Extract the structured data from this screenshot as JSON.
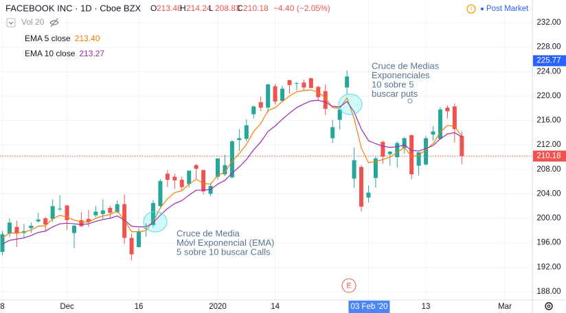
{
  "chart_data": {
    "type": "candlestick",
    "title": "FACEBOOK INC · 1D · Cboe BZX",
    "ohlc_labels": [
      "O",
      "H",
      "L",
      "C"
    ],
    "change": "−4.40 (−2.05%)",
    "session": "Post Market",
    "volume_label": "Vol 20",
    "up_color": "#26a69a",
    "down_color": "#ef5350",
    "categories": [
      "8",
      null,
      null,
      null,
      null,
      null,
      null,
      null,
      null,
      "Dec",
      null,
      null,
      null,
      null,
      null,
      null,
      null,
      null,
      null,
      "16",
      null,
      null,
      null,
      null,
      null,
      null,
      null,
      null,
      null,
      null,
      "2020",
      null,
      null,
      null,
      null,
      null,
      null,
      null,
      "14",
      null,
      null,
      null,
      null,
      null,
      null,
      null,
      null,
      null,
      null,
      null,
      null,
      "03 Feb '20",
      null,
      null,
      null,
      null,
      null,
      null,
      null,
      "13",
      null,
      null,
      null,
      null,
      null,
      null,
      null,
      null,
      null,
      null,
      "Mar"
    ],
    "open": [
      194.5,
      197.5,
      198.6,
      197.6,
      198.4,
      199.5,
      200.0,
      199.9,
      201.6,
      202.1,
      197.6,
      199.7,
      199.9,
      200.5,
      200.7,
      201.7,
      201.0,
      202.3,
      196.8,
      195.3,
      198.3,
      198.9,
      202.0,
      207.3,
      206.8,
      206.3,
      205.6,
      208.7,
      207.9,
      204.0,
      206.8,
      207.2,
      206.7,
      212.8,
      213.0,
      217.0,
      219.0,
      218.1,
      221.6,
      219.2,
      222.6,
      222.1,
      222.2,
      222.9,
      221.5,
      220.8,
      213.1,
      216.1,
      221.4,
      206.5,
      208.4,
      203.4,
      206.6,
      212.5,
      210.5,
      210.0,
      211.5,
      213.6,
      208.6,
      208.8,
      213.7,
      213.0,
      218.1,
      218.3,
      213.48,
      null,
      null,
      null,
      null,
      null,
      null
    ],
    "high": [
      197.9,
      200.0,
      199.6,
      199.1,
      199.3,
      200.9,
      200.2,
      203.1,
      203.8,
      202.2,
      198.9,
      201.0,
      201.4,
      202.0,
      203.1,
      202.1,
      202.9,
      203.9,
      197.5,
      198.4,
      199.2,
      203.0,
      206.4,
      207.9,
      207.3,
      206.8,
      207.8,
      208.9,
      207.9,
      205.6,
      209.8,
      210.4,
      212.8,
      214.6,
      216.2,
      218.4,
      219.9,
      222.0,
      222.0,
      221.7,
      222.6,
      222.3,
      222.7,
      223.0,
      221.7,
      221.9,
      216.1,
      218.4,
      224.2,
      211.6,
      208.7,
      205.4,
      210.1,
      212.7,
      211.0,
      212.6,
      213.3,
      213.7,
      210.8,
      213.5,
      215.1,
      218.2,
      218.5,
      218.8,
      214.24,
      null,
      null,
      null,
      null,
      null,
      null
    ],
    "low": [
      193.9,
      196.9,
      195.3,
      196.8,
      197.6,
      199.3,
      198.0,
      199.4,
      201.2,
      198.1,
      195.1,
      198.6,
      198.6,
      200.2,
      199.9,
      200.0,
      200.8,
      195.8,
      193.1,
      195.2,
      197.0,
      198.5,
      201.8,
      205.1,
      204.8,
      204.6,
      205.0,
      206.5,
      203.9,
      203.6,
      206.3,
      206.9,
      206.5,
      211.0,
      212.6,
      216.3,
      217.5,
      217.3,
      218.6,
      219.2,
      220.4,
      220.9,
      220.9,
      221.3,
      219.3,
      216.9,
      212.3,
      214.5,
      220.3,
      205.0,
      201.1,
      202.6,
      205.0,
      208.9,
      208.6,
      208.3,
      210.6,
      206.4,
      207.0,
      208.6,
      212.7,
      212.8,
      216.3,
      212.4,
      208.83,
      null,
      null,
      null,
      null,
      null,
      null
    ],
    "close": [
      197.4,
      199.3,
      197.5,
      197.9,
      198.8,
      199.8,
      199.0,
      202.0,
      201.6,
      199.7,
      198.8,
      198.7,
      199.4,
      201.1,
      201.3,
      200.9,
      202.3,
      196.8,
      194.1,
      197.9,
      198.4,
      202.5,
      206.1,
      206.3,
      206.2,
      205.1,
      207.8,
      208.1,
      204.4,
      205.3,
      209.8,
      208.7,
      212.6,
      213.1,
      215.2,
      218.3,
      218.1,
      221.9,
      219.1,
      221.2,
      221.8,
      222.1,
      221.4,
      221.3,
      219.8,
      217.9,
      214.9,
      217.8,
      223.2,
      209.5,
      201.9,
      204.2,
      209.8,
      210.1,
      210.9,
      212.3,
      213.1,
      207.2,
      210.8,
      213.1,
      214.2,
      217.8,
      217.5,
      214.6,
      210.18,
      null,
      null,
      null,
      null,
      null,
      null
    ],
    "series": [
      {
        "name": "EMA 5 close",
        "color": "#f57c00",
        "legend_value": "213.40",
        "values": [
          196.8,
          197.6,
          197.6,
          197.7,
          198.1,
          198.7,
          198.8,
          199.9,
          200.5,
          200.2,
          199.7,
          199.4,
          199.4,
          200.0,
          200.4,
          200.6,
          201.2,
          199.7,
          197.8,
          197.8,
          198.0,
          199.5,
          201.7,
          203.2,
          204.2,
          204.5,
          205.6,
          206.4,
          205.7,
          205.6,
          207.0,
          207.6,
          209.3,
          210.6,
          212.1,
          214.2,
          215.5,
          217.6,
          218.1,
          219.1,
          220.0,
          220.7,
          220.9,
          221.0,
          220.6,
          219.7,
          218.1,
          218.0,
          219.7,
          216.3,
          211.5,
          209.1,
          209.3,
          209.6,
          210.0,
          210.8,
          211.6,
          210.1,
          210.3,
          211.2,
          212.2,
          214.1,
          215.2,
          215.0,
          213.4,
          null,
          null,
          null,
          null,
          null,
          null
        ]
      },
      {
        "name": "EMA 10 close",
        "color": "#9c27b0",
        "legend_value": "213.27",
        "values": [
          195.8,
          196.4,
          196.6,
          196.8,
          197.2,
          197.7,
          197.9,
          198.6,
          199.1,
          199.2,
          199.1,
          199.0,
          199.1,
          199.5,
          199.8,
          200.0,
          200.4,
          199.7,
          198.7,
          198.6,
          198.6,
          199.3,
          200.5,
          201.6,
          202.4,
          202.9,
          203.8,
          204.6,
          204.6,
          204.7,
          205.6,
          206.2,
          207.4,
          208.4,
          209.6,
          211.2,
          212.5,
          214.2,
          215.1,
          216.2,
          217.2,
          218.1,
          218.7,
          219.2,
          219.3,
          219.0,
          218.3,
          218.2,
          219.1,
          217.4,
          214.6,
          212.7,
          212.2,
          211.8,
          211.6,
          211.7,
          212.0,
          211.1,
          211.0,
          211.4,
          211.9,
          213.0,
          213.8,
          214.0,
          213.3,
          null,
          null,
          null,
          null,
          null,
          null
        ]
      }
    ],
    "ylim": [
      186.65,
      235.7
    ],
    "yticks": [
      {
        "value": 188,
        "label": "188.00"
      },
      {
        "value": 192,
        "label": "192.00"
      },
      {
        "value": 196,
        "label": "196.00"
      },
      {
        "value": 200,
        "label": "200.00"
      },
      {
        "value": 204,
        "label": "204.00"
      },
      {
        "value": 208,
        "label": "208.00"
      },
      {
        "value": 212,
        "label": "212.00"
      },
      {
        "value": 216,
        "label": "216.00"
      },
      {
        "value": 220,
        "label": "220.00"
      },
      {
        "value": 224,
        "label": "224.00"
      },
      {
        "value": 228,
        "label": "228.00"
      },
      {
        "value": 232,
        "label": "232.00"
      }
    ],
    "grid": true,
    "price_tags": [
      {
        "value": 225.77,
        "color": "#2962ff"
      },
      {
        "value": 210.18,
        "color": "#ef5350"
      }
    ],
    "event_marker": "E",
    "annotations": [
      {
        "lines": [
          "Cruce de Media",
          "Móvl Exponencial (EMA)",
          "5 sobre 10  buscar Calls"
        ]
      },
      {
        "lines": [
          "Cruce de Medias",
          "Exponenciales",
          "10 sobre 5",
          "buscar puts"
        ]
      }
    ]
  }
}
